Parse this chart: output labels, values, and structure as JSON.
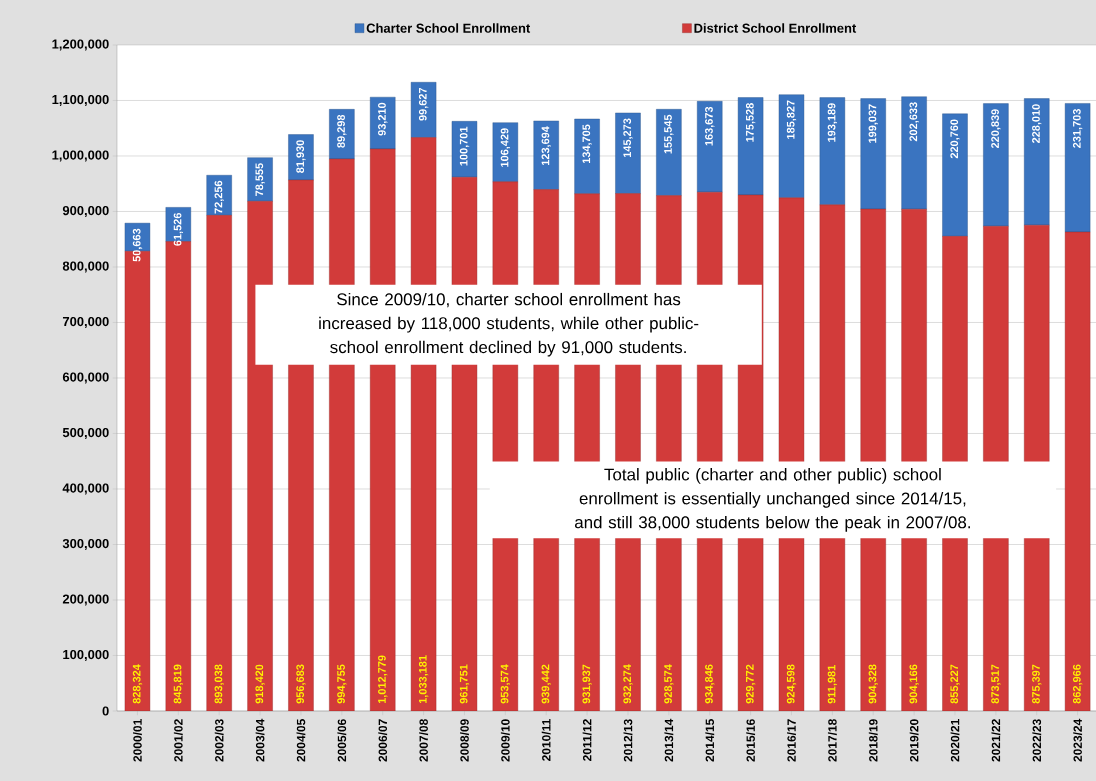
{
  "chart_data": {
    "type": "bar",
    "stacked": true,
    "categories": [
      "2000/01",
      "2001/02",
      "2002/03",
      "2003/04",
      "2004/05",
      "2005/06",
      "2006/07",
      "2007/08",
      "2008/09",
      "2009/10",
      "2010/11",
      "2011/12",
      "2012/13",
      "2013/14",
      "2014/15",
      "2015/16",
      "2016/17",
      "2017/18",
      "2018/19",
      "2019/20",
      "2020/21",
      "2021/22",
      "2022/23",
      "2023/24"
    ],
    "series": [
      {
        "name": "District School Enrollment",
        "color": "#d23b3a",
        "values": [
          828324,
          845819,
          893038,
          918420,
          956683,
          994755,
          1012779,
          1033181,
          961751,
          953574,
          939442,
          931937,
          932274,
          928574,
          934846,
          929772,
          924598,
          911981,
          904328,
          904166,
          855227,
          873517,
          875397,
          862966
        ],
        "value_labels": [
          "828,324",
          "845,819",
          "893,038",
          "918,420",
          "956,683",
          "994,755",
          "1,012,779",
          "1,033,181",
          "961,751",
          "953,574",
          "939,442",
          "931,937",
          "932,274",
          "928,574",
          "934,846",
          "929,772",
          "924,598",
          "911,981",
          "904,328",
          "904,166",
          "855,227",
          "873,517",
          "875,397",
          "862,966"
        ]
      },
      {
        "name": "Charter School Enrollment",
        "color": "#3a74c0",
        "values": [
          50663,
          61526,
          72256,
          78555,
          81930,
          89298,
          93210,
          99627,
          100701,
          106429,
          123694,
          134705,
          145273,
          155545,
          163673,
          175528,
          185827,
          193189,
          199037,
          202633,
          220760,
          220839,
          228010,
          231703
        ],
        "value_labels": [
          "50,663",
          "61,526",
          "72,256",
          "78,555",
          "81,930",
          "89,298",
          "93,210",
          "99,627",
          "100,701",
          "106,429",
          "123,694",
          "134,705",
          "145,273",
          "155,545",
          "163,673",
          "175,528",
          "185,827",
          "193,189",
          "199,037",
          "202,633",
          "220,760",
          "220,839",
          "228,010",
          "231,703"
        ]
      }
    ],
    "ylim": [
      0,
      1200000
    ],
    "yticks": [
      0,
      {
        "value": 100000,
        "label": "100,000"
      },
      {
        "value": 200000,
        "label": "200,000"
      },
      {
        "value": 300000,
        "label": "300,000"
      },
      {
        "value": 400000,
        "label": "400,000"
      },
      {
        "value": 500000,
        "label": "500,000"
      },
      {
        "value": 600000,
        "label": "600,000"
      },
      {
        "value": 700000,
        "label": "700,000"
      },
      {
        "value": 800000,
        "label": "800,000"
      },
      {
        "value": 900000,
        "label": "900,000"
      },
      {
        "value": 1000000,
        "label": "1,000,000"
      },
      {
        "value": 1100000,
        "label": "1,100,000"
      },
      {
        "value": 1200000,
        "label": "1,200,000"
      }
    ],
    "grid": "y",
    "legend": "top",
    "annotations": [
      "Since 2009/10, charter school enrollment has increased by 118,000 students, while other public-school enrollment declined by 91,000 students.",
      "Total public (charter and other public) school enrollment is essentially unchanged since 2014/15, and still 38,000 students below the peak in 2007/08."
    ]
  }
}
